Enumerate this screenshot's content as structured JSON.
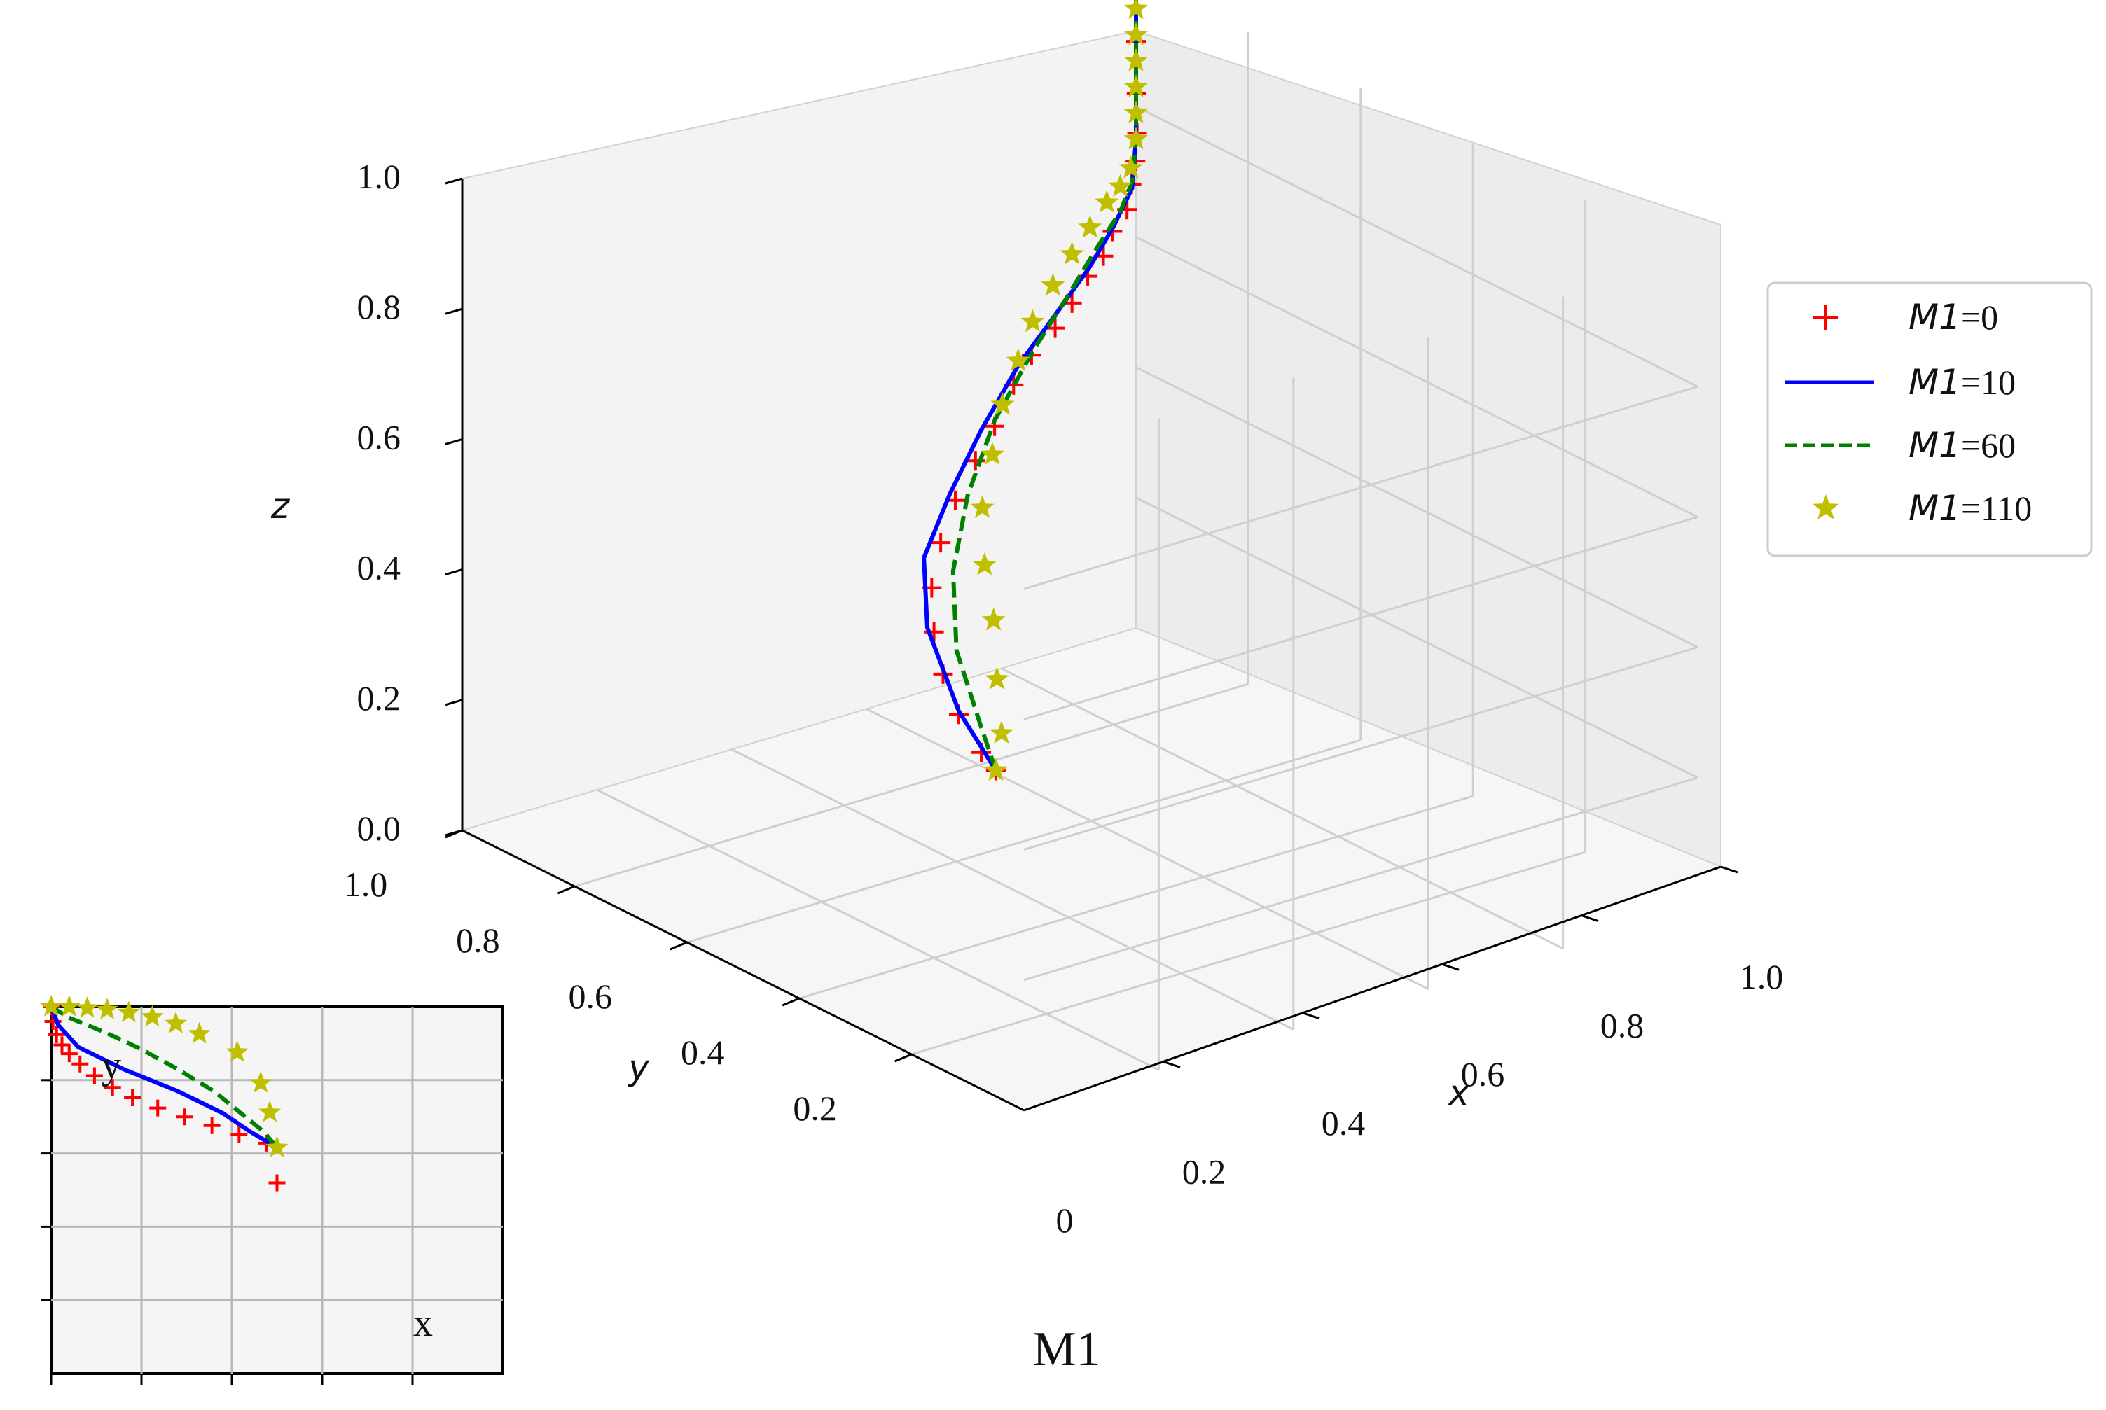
{
  "caption": "M1",
  "chart_data": [
    {
      "type": "line3d",
      "xlabel": "x",
      "ylabel": "y",
      "zlabel": "z",
      "xlim": [
        0,
        1.0
      ],
      "ylim": [
        0,
        1.0
      ],
      "zlim": [
        0,
        1.0
      ],
      "x_ticks": [
        "0",
        "0.2",
        "0.4",
        "0.6",
        "0.8",
        "1.0"
      ],
      "y_ticks": [
        "0.2",
        "0.4",
        "0.6",
        "0.8",
        "1.0"
      ],
      "z_ticks": [
        "0.0",
        "0.2",
        "0.4",
        "0.6",
        "0.8",
        "1.0"
      ],
      "grid": true,
      "legend_position": "right",
      "colors": {
        "M1_0": "#ff0000",
        "M1_10": "#0000ff",
        "M1_60": "#008000",
        "M1_110": "#bfbf00"
      },
      "series": [
        {
          "name_italic": "M1",
          "name_suffix": "=0",
          "style": "plus-markers",
          "color": "#ff0000",
          "points": [
            [
              0.95,
              0.0,
              0.5
            ],
            [
              0.9,
              0.02,
              0.5
            ],
            [
              0.8,
              0.07,
              0.5
            ],
            [
              0.7,
              0.13,
              0.5
            ],
            [
              0.6,
              0.2,
              0.5
            ],
            [
              0.5,
              0.28,
              0.5
            ],
            [
              0.42,
              0.36,
              0.51
            ],
            [
              0.35,
              0.44,
              0.52
            ],
            [
              0.29,
              0.52,
              0.53
            ],
            [
              0.24,
              0.59,
              0.54
            ],
            [
              0.19,
              0.66,
              0.56
            ],
            [
              0.15,
              0.72,
              0.57
            ],
            [
              0.12,
              0.78,
              0.58
            ],
            [
              0.09,
              0.83,
              0.59
            ],
            [
              0.07,
              0.87,
              0.61
            ],
            [
              0.05,
              0.91,
              0.62
            ],
            [
              0.03,
              0.94,
              0.64
            ],
            [
              0.02,
              0.97,
              0.66
            ],
            [
              0.01,
              0.985,
              0.69
            ],
            [
              0.005,
              0.995,
              0.72
            ],
            [
              0.002,
              1.0,
              0.76
            ],
            [
              0.001,
              1.0,
              0.82
            ],
            [
              0.0,
              1.0,
              0.9
            ],
            [
              0.0,
              1.0,
              0.97
            ],
            [
              0.0,
              1.0,
              1.02
            ]
          ]
        },
        {
          "name_italic": "M1",
          "name_suffix": "=10",
          "style": "solid",
          "color": "#0000ff",
          "points": [
            [
              0.95,
              0.0,
              0.5
            ],
            [
              0.8,
              0.07,
              0.505
            ],
            [
              0.6,
              0.19,
              0.51
            ],
            [
              0.45,
              0.31,
              0.515
            ],
            [
              0.34,
              0.44,
              0.525
            ],
            [
              0.24,
              0.57,
              0.54
            ],
            [
              0.15,
              0.7,
              0.56
            ],
            [
              0.09,
              0.81,
              0.585
            ],
            [
              0.05,
              0.89,
              0.61
            ],
            [
              0.02,
              0.95,
              0.64
            ],
            [
              0.005,
              0.99,
              0.68
            ],
            [
              0.0,
              1.0,
              0.75
            ],
            [
              0.0,
              1.0,
              0.85
            ],
            [
              0.0,
              1.0,
              1.0
            ]
          ]
        },
        {
          "name_italic": "M1",
          "name_suffix": "=60",
          "style": "dashed",
          "color": "#008000",
          "points": [
            [
              0.95,
              0.0,
              0.5
            ],
            [
              0.85,
              0.06,
              0.51
            ],
            [
              0.7,
              0.15,
              0.53
            ],
            [
              0.55,
              0.27,
              0.55
            ],
            [
              0.42,
              0.4,
              0.57
            ],
            [
              0.3,
              0.54,
              0.59
            ],
            [
              0.2,
              0.68,
              0.61
            ],
            [
              0.12,
              0.8,
              0.625
            ],
            [
              0.06,
              0.89,
              0.64
            ],
            [
              0.02,
              0.96,
              0.66
            ],
            [
              0.005,
              0.99,
              0.69
            ],
            [
              0.0,
              1.0,
              0.75
            ],
            [
              0.0,
              1.0,
              0.85
            ],
            [
              0.0,
              1.0,
              1.0
            ]
          ]
        },
        {
          "name_italic": "M1",
          "name_suffix": "=110",
          "style": "star-markers",
          "color": "#bfbf00",
          "points": [
            [
              0.95,
              0.0,
              0.5
            ],
            [
              0.9,
              0.05,
              0.52
            ],
            [
              0.82,
              0.11,
              0.55
            ],
            [
              0.73,
              0.18,
              0.58
            ],
            [
              0.63,
              0.25,
              0.6
            ],
            [
              0.53,
              0.33,
              0.62
            ],
            [
              0.44,
              0.42,
              0.635
            ],
            [
              0.35,
              0.51,
              0.645
            ],
            [
              0.27,
              0.6,
              0.65
            ],
            [
              0.2,
              0.68,
              0.655
            ],
            [
              0.14,
              0.76,
              0.66
            ],
            [
              0.09,
              0.83,
              0.665
            ],
            [
              0.05,
              0.89,
              0.67
            ],
            [
              0.02,
              0.94,
              0.68
            ],
            [
              0.008,
              0.97,
              0.69
            ],
            [
              0.003,
              0.99,
              0.71
            ],
            [
              0.0,
              1.0,
              0.75
            ],
            [
              0.0,
              1.0,
              0.79
            ],
            [
              0.0,
              1.0,
              0.83
            ],
            [
              0.0,
              1.0,
              0.87
            ],
            [
              0.0,
              1.0,
              0.91
            ],
            [
              0.0,
              1.0,
              0.95
            ],
            [
              0.0,
              1.0,
              0.99
            ],
            [
              0.0,
              1.0,
              1.02
            ],
            [
              0.0,
              1.0,
              1.05
            ]
          ]
        }
      ]
    },
    {
      "type": "line",
      "role": "inset",
      "xlabel": "x",
      "ylabel": "y",
      "xlim": [
        0,
        5
      ],
      "ylim": [
        0,
        5
      ],
      "grid": true,
      "series": [
        {
          "ref": "M1=0",
          "style": "plus-markers",
          "color": "#ff0000",
          "points": [
            [
              0,
              5
            ],
            [
              0.02,
              4.8
            ],
            [
              0.06,
              4.62
            ],
            [
              0.12,
              4.48
            ],
            [
              0.2,
              4.36
            ],
            [
              0.32,
              4.22
            ],
            [
              0.48,
              4.06
            ],
            [
              0.68,
              3.9
            ],
            [
              0.9,
              3.76
            ],
            [
              1.18,
              3.62
            ],
            [
              1.48,
              3.5
            ],
            [
              1.78,
              3.38
            ],
            [
              2.08,
              3.26
            ],
            [
              2.38,
              3.14
            ],
            [
              2.5,
              2.6
            ]
          ]
        },
        {
          "ref": "M1=10",
          "style": "solid",
          "color": "#0000ff",
          "points": [
            [
              0,
              5
            ],
            [
              0.08,
              4.75
            ],
            [
              0.3,
              4.45
            ],
            [
              0.8,
              4.15
            ],
            [
              1.4,
              3.85
            ],
            [
              1.9,
              3.55
            ],
            [
              2.2,
              3.3
            ],
            [
              2.5,
              3.08
            ]
          ]
        },
        {
          "ref": "M1=60",
          "style": "dashed",
          "color": "#008000",
          "points": [
            [
              0,
              5
            ],
            [
              0.2,
              4.85
            ],
            [
              0.6,
              4.65
            ],
            [
              1.0,
              4.42
            ],
            [
              1.4,
              4.15
            ],
            [
              1.8,
              3.85
            ],
            [
              2.1,
              3.55
            ],
            [
              2.35,
              3.3
            ],
            [
              2.5,
              3.08
            ]
          ]
        },
        {
          "ref": "M1=110",
          "style": "star-markers",
          "color": "#bfbf00",
          "points": [
            [
              0,
              5
            ],
            [
              0.2,
              5
            ],
            [
              0.4,
              4.98
            ],
            [
              0.62,
              4.96
            ],
            [
              0.86,
              4.92
            ],
            [
              1.12,
              4.86
            ],
            [
              1.38,
              4.77
            ],
            [
              1.64,
              4.63
            ],
            [
              2.06,
              4.38
            ],
            [
              2.32,
              3.96
            ],
            [
              2.42,
              3.56
            ],
            [
              2.5,
              3.08
            ]
          ]
        }
      ]
    }
  ]
}
